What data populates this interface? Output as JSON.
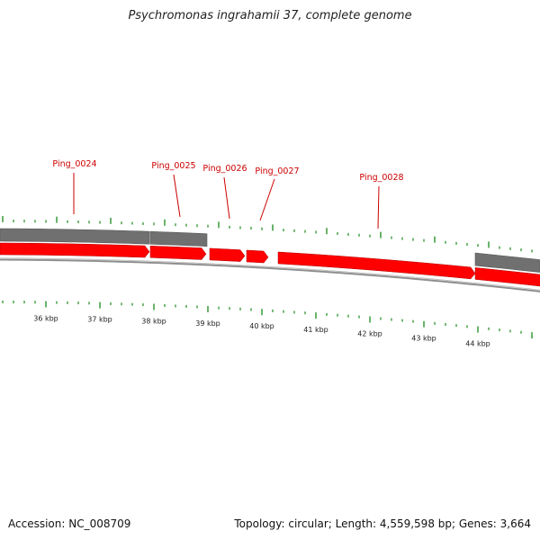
{
  "title": "Psychromonas ingrahamii 37, complete genome",
  "footer": {
    "accession": "Accession: NC_008709",
    "summary": "Topology: circular; Length: 4,559,598 bp; Genes: 3,664"
  },
  "colors": {
    "gene_forward": "#ff0000",
    "gene_other": "#707070",
    "gene_label": "#cc0000",
    "tick": "#1a8a1a",
    "backbone": "#8c8c8c"
  },
  "scale_labels": [
    "36 kbp",
    "37 kbp",
    "38 kbp",
    "39 kbp",
    "40 kbp",
    "41 kbp",
    "42 kbp",
    "43 kbp",
    "44 kbp"
  ],
  "gene_labels": [
    "Ping_0024",
    "Ping_0025",
    "Ping_0026",
    "Ping_0027",
    "Ping_0028"
  ]
}
